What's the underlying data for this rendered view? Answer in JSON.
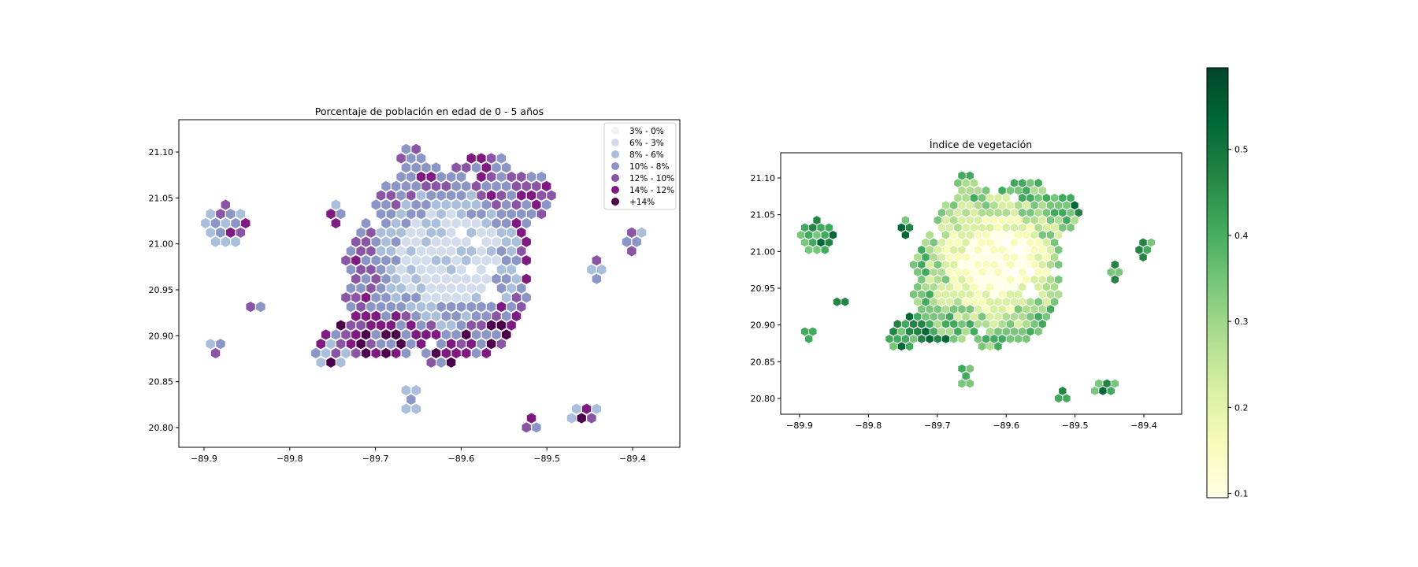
{
  "left_map": {
    "title": "Porcentaje de población en edad de 0 - 5 años",
    "x_ticks": [
      "−89.9",
      "−89.8",
      "−89.7",
      "−89.6",
      "−89.5",
      "−89.4"
    ],
    "y_ticks": [
      "20.80",
      "20.85",
      "20.90",
      "20.95",
      "21.00",
      "21.05",
      "21.10"
    ],
    "legend": [
      {
        "label": "3% - 0%",
        "color": "#f3f0f8"
      },
      {
        "label": "6% - 3%",
        "color": "#d2dced"
      },
      {
        "label": "8% - 6%",
        "color": "#a9bfdc"
      },
      {
        "label": "10% - 8%",
        "color": "#8c96c6"
      },
      {
        "label": "12% - 10%",
        "color": "#8b55a6"
      },
      {
        "label": "14% - 12%",
        "color": "#7e1a81"
      },
      {
        "label": "+14%",
        "color": "#4d004b"
      }
    ]
  },
  "right_map": {
    "title": "Índice de vegetación",
    "x_ticks": [
      "−89.9",
      "−89.8",
      "−89.7",
      "−89.6",
      "−89.5",
      "−89.4"
    ],
    "y_ticks": [
      "20.80",
      "20.85",
      "20.90",
      "20.95",
      "21.00",
      "21.05",
      "21.10"
    ]
  },
  "colorbar": {
    "ticks": [
      "0.1",
      "0.2",
      "0.3",
      "0.4",
      "0.5"
    ],
    "min": 0.095,
    "max": 0.595,
    "colors": [
      "#ffffe5",
      "#f7fcb9",
      "#d9f0a3",
      "#addd8e",
      "#78c679",
      "#41ab5d",
      "#238443",
      "#006837",
      "#004529"
    ]
  },
  "colors": {
    "axis": "#000000",
    "background": "#ffffff"
  }
}
